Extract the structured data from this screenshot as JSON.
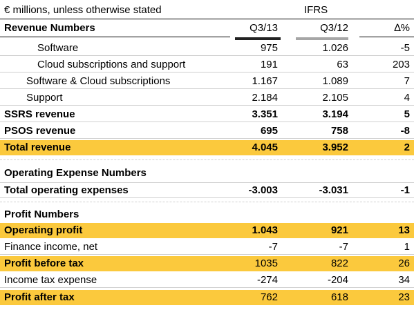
{
  "header": {
    "units": "€ millions, unless otherwise stated",
    "standard": "IFRS"
  },
  "columns": [
    "Q3/13",
    "Q3/12",
    "∆%"
  ],
  "sections": {
    "revenue_title": "Revenue Numbers",
    "opex_title": "Operating Expense Numbers",
    "profit_title": "Profit Numbers"
  },
  "rows": [
    {
      "label": "Software",
      "q313": "975",
      "q312": "1.026",
      "delta": "-5"
    },
    {
      "label": "Cloud subscriptions and support",
      "q313": "191",
      "q312": "63",
      "delta": "203"
    },
    {
      "label": "Software & Cloud subscriptions",
      "q313": "1.167",
      "q312": "1.089",
      "delta": "7"
    },
    {
      "label": "Support",
      "q313": "2.184",
      "q312": "2.105",
      "delta": "4"
    },
    {
      "label": "SSRS revenue",
      "q313": "3.351",
      "q312": "3.194",
      "delta": "5"
    },
    {
      "label": "PSOS revenue",
      "q313": "695",
      "q312": "758",
      "delta": "-8"
    },
    {
      "label": "Total revenue",
      "q313": "4.045",
      "q312": "3.952",
      "delta": "2"
    },
    {
      "label": "Total operating expenses",
      "q313": "-3.003",
      "q312": "-3.031",
      "delta": "-1"
    },
    {
      "label": "Operating profit",
      "q313": "1.043",
      "q312": "921",
      "delta": "13"
    },
    {
      "label": "Finance income, net",
      "q313": "-7",
      "q312": "-7",
      "delta": "1"
    },
    {
      "label": "Profit before tax",
      "q313": "1035",
      "q312": "822",
      "delta": "26"
    },
    {
      "label": "Income tax expense",
      "q313": "-274",
      "q312": "-204",
      "delta": "34"
    },
    {
      "label": "Profit after tax",
      "q313": "762",
      "q312": "618",
      "delta": "23"
    }
  ],
  "colors": {
    "highlight": "#fbc93d",
    "q313_bar": "#222222",
    "q312_bar": "#a6a6a6"
  }
}
